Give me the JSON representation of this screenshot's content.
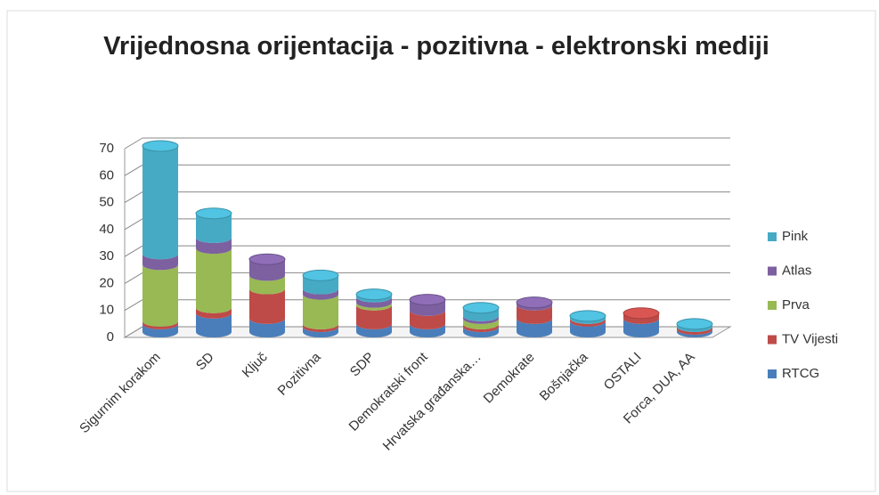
{
  "chart_data": {
    "type": "bar",
    "stacked": true,
    "title": "Vrijednosna orijentacija - pozitivna - elektronski mediji",
    "categories": [
      "Sigurnim korakom",
      "SD",
      "Ključ",
      "Pozitivna",
      "SDP",
      "Demokratski front",
      "Hrvatska građanska…",
      "Demokrate",
      "Bošnjačka",
      "OSTALI",
      "Forca, DUA, AA"
    ],
    "series": [
      {
        "name": "RTCG",
        "color": "#4a7ebb",
        "values": [
          3,
          7,
          5,
          2,
          3,
          3,
          2,
          5,
          4,
          5,
          1
        ]
      },
      {
        "name": "TV Vijesti",
        "color": "#be4b48",
        "values": [
          1,
          2,
          11,
          1,
          7,
          5,
          1,
          5,
          1,
          2,
          1
        ]
      },
      {
        "name": "Prva",
        "color": "#98b954",
        "values": [
          21,
          22,
          5,
          11,
          1,
          0,
          2,
          0,
          0,
          0,
          0
        ]
      },
      {
        "name": "Atlas",
        "color": "#7d60a0",
        "values": [
          4,
          4,
          6,
          2,
          2,
          4,
          1,
          1,
          0,
          0,
          0
        ]
      },
      {
        "name": "Pink",
        "color": "#46aac5",
        "values": [
          40,
          9,
          0,
          5,
          1,
          0,
          3,
          0,
          1,
          0,
          1
        ]
      }
    ],
    "ylim": [
      0,
      70
    ],
    "yticks": [
      0,
      10,
      20,
      30,
      40,
      50,
      60,
      70
    ],
    "grid": true,
    "legend": "right"
  }
}
